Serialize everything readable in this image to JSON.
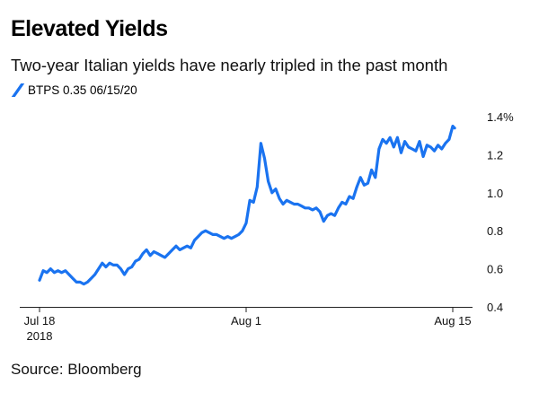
{
  "title": "Elevated Yields",
  "subtitle": "Two-year Italian yields have nearly tripled in the past month",
  "source": "Source: Bloomberg",
  "chart_data": {
    "type": "line",
    "title": "Elevated Yields",
    "subtitle": "Two-year Italian yields have nearly tripled in the past month",
    "xlabel": "",
    "ylabel": "",
    "x_ticks": [
      {
        "label": "Jul 18",
        "sublabel": "2018",
        "value": "2018-07-18"
      },
      {
        "label": "Aug 1",
        "sublabel": "",
        "value": "2018-08-01"
      },
      {
        "label": "Aug 15",
        "sublabel": "",
        "value": "2018-08-15"
      }
    ],
    "y_ticks": [
      {
        "label": "1.4%",
        "value": 1.4
      },
      {
        "label": "1.2",
        "value": 1.2
      },
      {
        "label": "1.0",
        "value": 1.0
      },
      {
        "label": "0.8",
        "value": 0.8
      },
      {
        "label": "0.6",
        "value": 0.6
      },
      {
        "label": "0.4",
        "value": 0.4
      }
    ],
    "ylim": [
      0.4,
      1.4
    ],
    "xlim": [
      "2018-07-18",
      "2018-08-15"
    ],
    "legend": "top-left",
    "grid": false,
    "series": [
      {
        "name": "BTPS 0.35 06/15/20",
        "color": "#1a73f0",
        "points": [
          [
            "2018-07-18 00:00",
            0.54
          ],
          [
            "2018-07-18 06:00",
            0.59
          ],
          [
            "2018-07-18 12:00",
            0.58
          ],
          [
            "2018-07-18 18:00",
            0.6
          ],
          [
            "2018-07-19 00:00",
            0.58
          ],
          [
            "2018-07-19 06:00",
            0.59
          ],
          [
            "2018-07-19 12:00",
            0.58
          ],
          [
            "2018-07-19 18:00",
            0.59
          ],
          [
            "2018-07-20 00:00",
            0.57
          ],
          [
            "2018-07-20 06:00",
            0.55
          ],
          [
            "2018-07-20 12:00",
            0.53
          ],
          [
            "2018-07-20 18:00",
            0.53
          ],
          [
            "2018-07-21 00:00",
            0.52
          ],
          [
            "2018-07-21 06:00",
            0.53
          ],
          [
            "2018-07-21 12:00",
            0.55
          ],
          [
            "2018-07-21 18:00",
            0.57
          ],
          [
            "2018-07-22 00:00",
            0.6
          ],
          [
            "2018-07-22 06:00",
            0.63
          ],
          [
            "2018-07-22 12:00",
            0.61
          ],
          [
            "2018-07-22 18:00",
            0.63
          ],
          [
            "2018-07-23 00:00",
            0.62
          ],
          [
            "2018-07-23 06:00",
            0.62
          ],
          [
            "2018-07-23 12:00",
            0.6
          ],
          [
            "2018-07-23 18:00",
            0.57
          ],
          [
            "2018-07-24 00:00",
            0.6
          ],
          [
            "2018-07-24 06:00",
            0.61
          ],
          [
            "2018-07-24 12:00",
            0.64
          ],
          [
            "2018-07-24 18:00",
            0.65
          ],
          [
            "2018-07-25 00:00",
            0.68
          ],
          [
            "2018-07-25 06:00",
            0.7
          ],
          [
            "2018-07-25 12:00",
            0.67
          ],
          [
            "2018-07-25 18:00",
            0.69
          ],
          [
            "2018-07-26 00:00",
            0.68
          ],
          [
            "2018-07-26 06:00",
            0.67
          ],
          [
            "2018-07-26 12:00",
            0.66
          ],
          [
            "2018-07-26 18:00",
            0.68
          ],
          [
            "2018-07-27 00:00",
            0.7
          ],
          [
            "2018-07-27 06:00",
            0.72
          ],
          [
            "2018-07-27 12:00",
            0.7
          ],
          [
            "2018-07-27 18:00",
            0.71
          ],
          [
            "2018-07-28 00:00",
            0.72
          ],
          [
            "2018-07-28 06:00",
            0.71
          ],
          [
            "2018-07-28 12:00",
            0.75
          ],
          [
            "2018-07-28 18:00",
            0.77
          ],
          [
            "2018-07-29 00:00",
            0.79
          ],
          [
            "2018-07-29 06:00",
            0.8
          ],
          [
            "2018-07-29 12:00",
            0.79
          ],
          [
            "2018-07-29 18:00",
            0.78
          ],
          [
            "2018-07-30 00:00",
            0.78
          ],
          [
            "2018-07-30 06:00",
            0.77
          ],
          [
            "2018-07-30 12:00",
            0.76
          ],
          [
            "2018-07-30 18:00",
            0.77
          ],
          [
            "2018-07-31 00:00",
            0.76
          ],
          [
            "2018-07-31 06:00",
            0.77
          ],
          [
            "2018-07-31 12:00",
            0.78
          ],
          [
            "2018-07-31 18:00",
            0.8
          ],
          [
            "2018-08-01 00:00",
            0.84
          ],
          [
            "2018-08-01 06:00",
            0.96
          ],
          [
            "2018-08-01 12:00",
            0.95
          ],
          [
            "2018-08-01 18:00",
            1.03
          ],
          [
            "2018-08-02 00:00",
            1.26
          ],
          [
            "2018-08-02 06:00",
            1.18
          ],
          [
            "2018-08-02 12:00",
            1.06
          ],
          [
            "2018-08-02 18:00",
            1.0
          ],
          [
            "2018-08-03 00:00",
            1.02
          ],
          [
            "2018-08-03 06:00",
            0.97
          ],
          [
            "2018-08-03 12:00",
            0.94
          ],
          [
            "2018-08-03 18:00",
            0.96
          ],
          [
            "2018-08-04 00:00",
            0.95
          ],
          [
            "2018-08-04 06:00",
            0.94
          ],
          [
            "2018-08-04 12:00",
            0.94
          ],
          [
            "2018-08-04 18:00",
            0.93
          ],
          [
            "2018-08-05 00:00",
            0.92
          ],
          [
            "2018-08-05 06:00",
            0.92
          ],
          [
            "2018-08-05 12:00",
            0.91
          ],
          [
            "2018-08-05 18:00",
            0.92
          ],
          [
            "2018-08-06 00:00",
            0.9
          ],
          [
            "2018-08-06 06:00",
            0.85
          ],
          [
            "2018-08-06 12:00",
            0.88
          ],
          [
            "2018-08-06 18:00",
            0.89
          ],
          [
            "2018-08-07 00:00",
            0.88
          ],
          [
            "2018-08-07 06:00",
            0.92
          ],
          [
            "2018-08-07 12:00",
            0.95
          ],
          [
            "2018-08-07 18:00",
            0.94
          ],
          [
            "2018-08-08 00:00",
            0.98
          ],
          [
            "2018-08-08 06:00",
            0.97
          ],
          [
            "2018-08-08 12:00",
            1.03
          ],
          [
            "2018-08-08 18:00",
            1.08
          ],
          [
            "2018-08-09 00:00",
            1.04
          ],
          [
            "2018-08-09 06:00",
            1.05
          ],
          [
            "2018-08-09 12:00",
            1.12
          ],
          [
            "2018-08-09 18:00",
            1.08
          ],
          [
            "2018-08-10 00:00",
            1.23
          ],
          [
            "2018-08-10 06:00",
            1.28
          ],
          [
            "2018-08-10 12:00",
            1.26
          ],
          [
            "2018-08-10 18:00",
            1.29
          ],
          [
            "2018-08-11 00:00",
            1.24
          ],
          [
            "2018-08-11 06:00",
            1.29
          ],
          [
            "2018-08-11 12:00",
            1.21
          ],
          [
            "2018-08-11 18:00",
            1.27
          ],
          [
            "2018-08-12 00:00",
            1.24
          ],
          [
            "2018-08-12 06:00",
            1.23
          ],
          [
            "2018-08-12 12:00",
            1.22
          ],
          [
            "2018-08-12 18:00",
            1.27
          ],
          [
            "2018-08-13 00:00",
            1.19
          ],
          [
            "2018-08-13 06:00",
            1.25
          ],
          [
            "2018-08-13 12:00",
            1.24
          ],
          [
            "2018-08-13 18:00",
            1.22
          ],
          [
            "2018-08-14 00:00",
            1.25
          ],
          [
            "2018-08-14 06:00",
            1.23
          ],
          [
            "2018-08-14 12:00",
            1.26
          ],
          [
            "2018-08-14 18:00",
            1.28
          ],
          [
            "2018-08-15 00:00",
            1.35
          ],
          [
            "2018-08-15 03:00",
            1.34
          ]
        ]
      }
    ]
  }
}
